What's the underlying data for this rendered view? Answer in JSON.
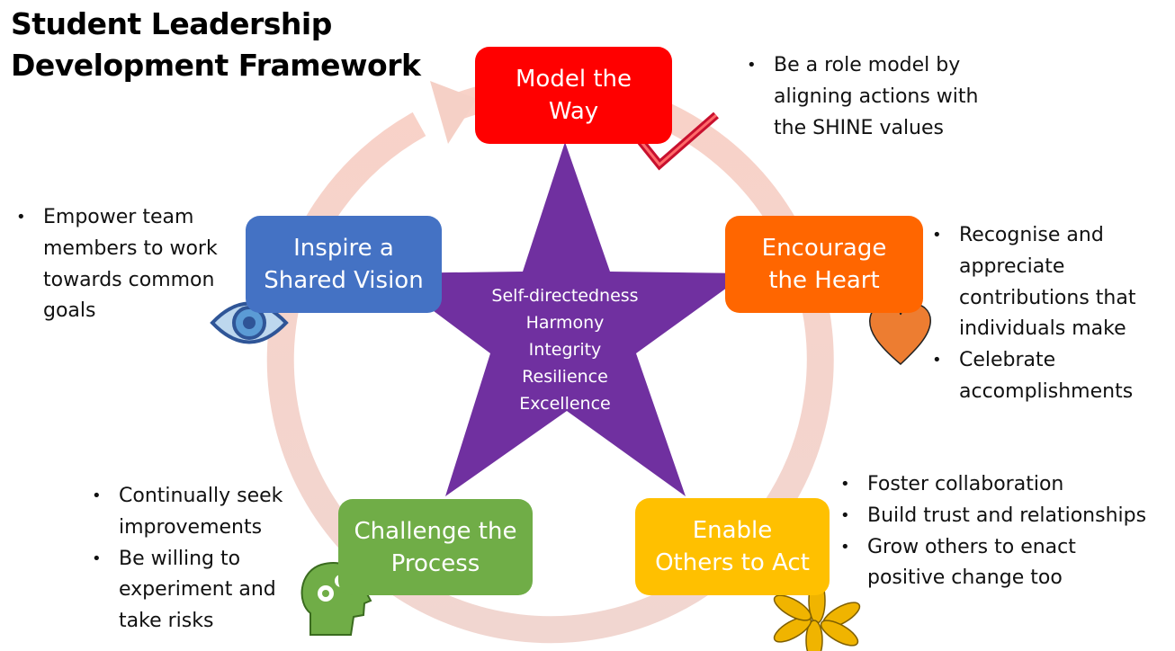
{
  "title": {
    "line1": "Student Leadership",
    "line2": "Development Framework"
  },
  "core_values": [
    "Self-directedness",
    "Harmony",
    "Integrity",
    "Resilience",
    "Excellence"
  ],
  "practices": {
    "model": {
      "label_lines": [
        "Model the",
        "Way"
      ],
      "color": "#ff0000",
      "icon": "checkmark-icon",
      "notes": [
        [
          "Be a role model by",
          "aligning actions with",
          "the SHINE values"
        ]
      ]
    },
    "encourage": {
      "label_lines": [
        "Encourage",
        "the Heart"
      ],
      "color": "#ff6600",
      "icon": "heart-icon",
      "notes": [
        [
          "Recognise and",
          "appreciate",
          "contributions that",
          "individuals make"
        ],
        [
          "Celebrate",
          "accomplishments"
        ]
      ]
    },
    "enable": {
      "label_lines": [
        "Enable",
        "Others to Act"
      ],
      "color": "#ffc000",
      "icon": "joined-hands-icon",
      "notes": [
        [
          "Foster collaboration"
        ],
        [
          "Build trust and relationships"
        ],
        [
          "Grow others to enact",
          "positive change too"
        ]
      ]
    },
    "challenge": {
      "label_lines": [
        "Challenge the",
        "Process"
      ],
      "color": "#70ad47",
      "icon": "head-gears-icon",
      "notes": [
        [
          "Continually seek",
          "improvements"
        ],
        [
          "Be willing to",
          "experiment and",
          "take risks"
        ]
      ]
    },
    "inspire": {
      "label_lines": [
        "Inspire a",
        "Shared Vision"
      ],
      "color": "#4472c4",
      "icon": "eye-icon",
      "notes": [
        [
          "Empower team",
          "members to work",
          "towards common",
          "goals"
        ]
      ]
    }
  },
  "colors": {
    "star": "#7030a0",
    "cycle_arrow": "#f4cfc6"
  }
}
